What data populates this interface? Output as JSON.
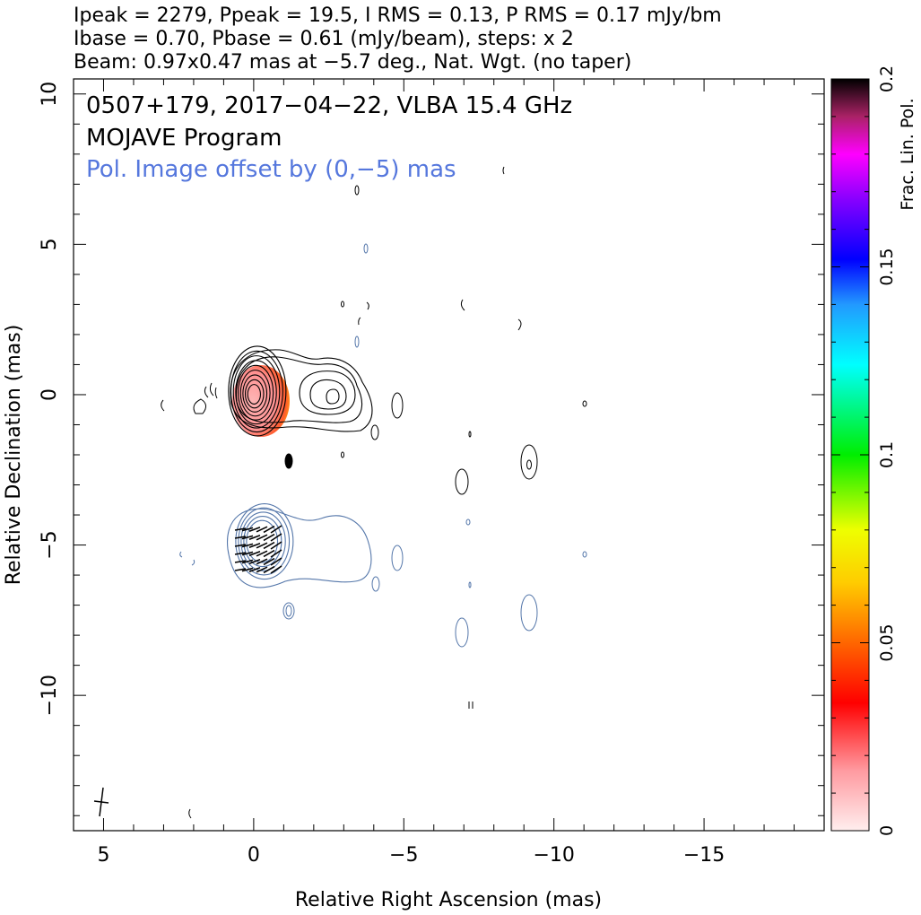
{
  "header": {
    "line1": "Ipeak = 2279, Ppeak = 19.5, I RMS = 0.13, P RMS = 0.17 mJy/bm",
    "line2": "Ibase = 0.70, Pbase = 0.61 (mJy/beam), steps: x 2",
    "line3": "Beam: 0.97x0.47 mas at −5.7 deg., Nat. Wgt. (no taper)"
  },
  "inset": {
    "title": "0507+179, 2017−04−22, VLBA 15.4 GHz",
    "program": "MOJAVE Program",
    "pol_note": "Pol. Image offset by (0,−5) mas"
  },
  "colors": {
    "total_intensity_contours": "#000000",
    "polarization_contours": "#5577aa",
    "pol_note_text": "#5577dd"
  },
  "chart_data": {
    "type": "contour",
    "xlabel": "Relative Right Ascension (mas)",
    "ylabel": "Relative Declination (mas)",
    "xlim": [
      6,
      -19
    ],
    "ylim": [
      -14.5,
      10.5
    ],
    "x_ticks": [
      5,
      0,
      -5,
      -10,
      -15
    ],
    "x_tick_labels": [
      "5",
      "0",
      "−5",
      "−10",
      "−15"
    ],
    "y_ticks": [
      10,
      5,
      0,
      -5,
      -10
    ],
    "y_tick_labels": [
      "10",
      "5",
      "0",
      "−5",
      "−10"
    ],
    "colorbar": {
      "label": "Frac. Lin. Pol.",
      "range": [
        0,
        0.2
      ],
      "ticks": [
        0,
        0.05,
        0.1,
        0.15,
        0.2
      ],
      "tick_labels": [
        "0",
        "0.05",
        "0.1",
        "0.15",
        "0.2"
      ]
    },
    "core": {
      "ra": 0.0,
      "dec": 0.0
    },
    "total_intensity_levels": 9,
    "pol_offset_mas": [
      0,
      -5
    ],
    "beam": {
      "major": 0.97,
      "minor": 0.47,
      "pa_deg": -5.7,
      "ra": 5,
      "dec": -13.4
    },
    "features": [
      {
        "name": "core",
        "ra": 0.0,
        "dec": 0.0
      },
      {
        "name": "jet knot",
        "ra": -2.7,
        "dec": 0.0
      },
      {
        "name": "island",
        "ra": -9.2,
        "dec": -2.2
      },
      {
        "name": "island",
        "ra": -7.0,
        "dec": -2.7
      }
    ],
    "frac_pol_region": {
      "ra_range": [
        0.5,
        -1.2
      ],
      "dec_range": [
        -1.0,
        1.3
      ],
      "max_frac_pol": 0.07
    }
  }
}
